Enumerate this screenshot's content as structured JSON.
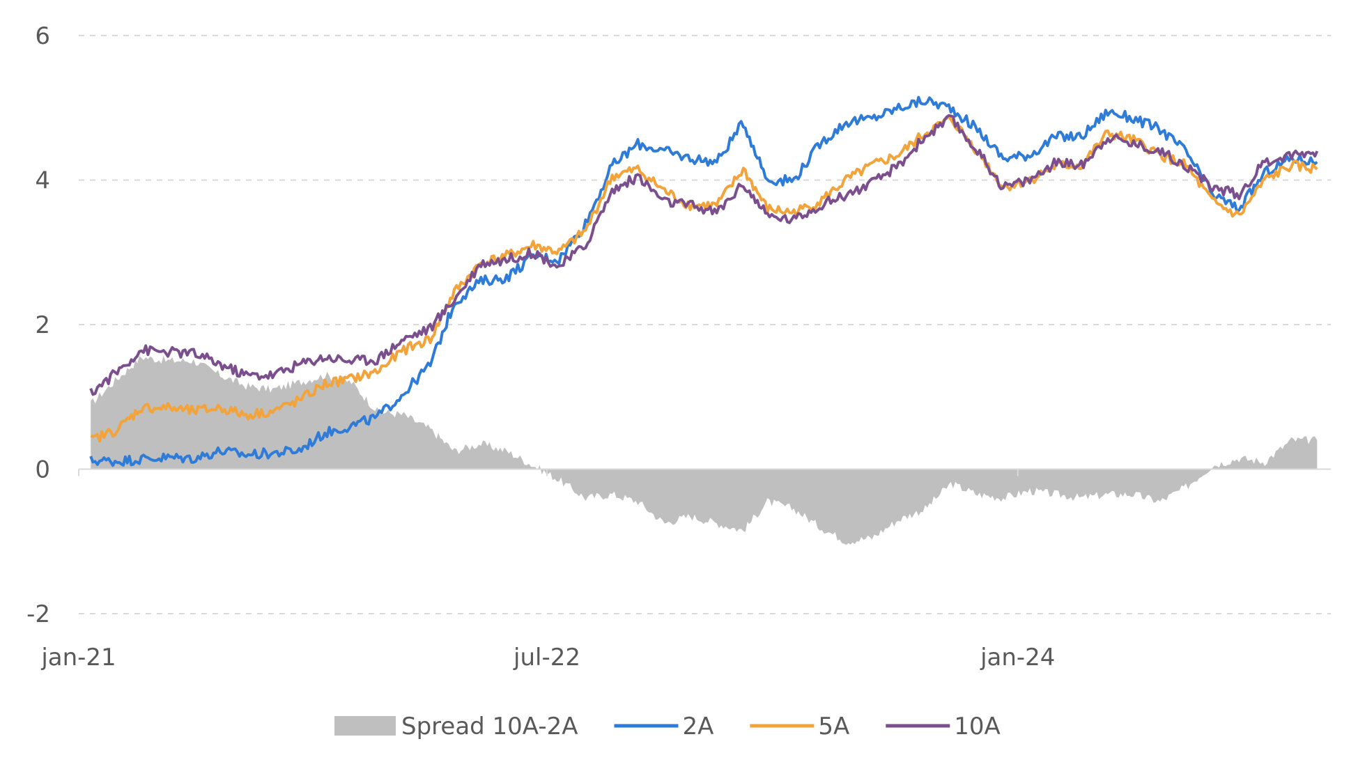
{
  "chart_data": {
    "type": "line",
    "title": "",
    "xlabel": "",
    "ylabel": "",
    "ylim": [
      -2,
      6
    ],
    "yticks": [
      -2,
      0,
      2,
      4,
      6
    ],
    "yticklabels": [
      "-2",
      "0",
      "2",
      "4",
      "6"
    ],
    "xlim": [
      "2021-01-01",
      "2024-12-31"
    ],
    "xticks": [
      "2021-01-01",
      "2022-07-01",
      "2024-01-01"
    ],
    "xticklabels": [
      "jan-21",
      "jul-22",
      "jan-24"
    ],
    "grid": true,
    "legend": "bottom",
    "x": [
      "2021-01",
      "2021-02",
      "2021-03",
      "2021-04",
      "2021-05",
      "2021-06",
      "2021-07",
      "2021-08",
      "2021-09",
      "2021-10",
      "2021-11",
      "2021-12",
      "2022-01",
      "2022-02",
      "2022-03",
      "2022-04",
      "2022-05",
      "2022-06",
      "2022-07",
      "2022-08",
      "2022-09",
      "2022-10",
      "2022-11",
      "2022-12",
      "2023-01",
      "2023-02",
      "2023-03",
      "2023-04",
      "2023-05",
      "2023-06",
      "2023-07",
      "2023-08",
      "2023-09",
      "2023-10",
      "2023-11",
      "2023-12",
      "2024-01",
      "2024-02",
      "2024-03",
      "2024-04",
      "2024-05",
      "2024-06",
      "2024-07",
      "2024-08",
      "2024-09",
      "2024-10",
      "2024-11",
      "2024-12"
    ],
    "series": [
      {
        "name": "Spread 10A-2A",
        "kind": "area",
        "color": "#bfbfbf",
        "values": [
          0.9,
          1.25,
          1.55,
          1.5,
          1.5,
          1.3,
          1.15,
          1.1,
          1.2,
          1.3,
          1.2,
          0.8,
          0.75,
          0.55,
          0.25,
          0.35,
          0.25,
          0.05,
          -0.15,
          -0.4,
          -0.35,
          -0.45,
          -0.75,
          -0.65,
          -0.75,
          -0.85,
          -0.45,
          -0.55,
          -0.8,
          -1.0,
          -0.95,
          -0.7,
          -0.55,
          -0.2,
          -0.35,
          -0.4,
          -0.3,
          -0.35,
          -0.4,
          -0.35,
          -0.35,
          -0.45,
          -0.25,
          0.05,
          0.15,
          0.1,
          0.4,
          0.4
        ]
      },
      {
        "name": "2A",
        "kind": "line",
        "color": "#2e7bd8",
        "values": [
          0.12,
          0.11,
          0.14,
          0.16,
          0.15,
          0.25,
          0.2,
          0.22,
          0.26,
          0.5,
          0.6,
          0.72,
          1.05,
          1.45,
          2.3,
          2.6,
          2.65,
          2.95,
          2.9,
          3.4,
          4.2,
          4.5,
          4.4,
          4.3,
          4.25,
          4.8,
          4.0,
          4.0,
          4.5,
          4.8,
          4.85,
          5.0,
          5.1,
          5.0,
          4.7,
          4.3,
          4.35,
          4.6,
          4.6,
          4.95,
          4.85,
          4.7,
          4.4,
          3.8,
          3.6,
          4.1,
          4.3,
          4.25
        ]
      },
      {
        "name": "5A",
        "kind": "line",
        "color": "#f2a33a",
        "values": [
          0.4,
          0.55,
          0.85,
          0.85,
          0.8,
          0.85,
          0.75,
          0.8,
          0.95,
          1.18,
          1.25,
          1.35,
          1.65,
          1.8,
          2.45,
          2.85,
          2.95,
          3.1,
          3.0,
          3.3,
          4.05,
          4.15,
          3.85,
          3.65,
          3.65,
          4.15,
          3.6,
          3.55,
          3.7,
          4.0,
          4.2,
          4.35,
          4.65,
          4.85,
          4.4,
          3.9,
          4.0,
          4.2,
          4.2,
          4.65,
          4.55,
          4.35,
          4.2,
          3.7,
          3.5,
          4.0,
          4.2,
          4.15
        ]
      },
      {
        "name": "10A",
        "kind": "line",
        "color": "#7b4f8e",
        "values": [
          1.05,
          1.35,
          1.65,
          1.62,
          1.6,
          1.45,
          1.3,
          1.3,
          1.45,
          1.55,
          1.5,
          1.52,
          1.8,
          1.95,
          2.35,
          2.85,
          2.9,
          3.0,
          2.8,
          3.1,
          3.85,
          4.05,
          3.7,
          3.65,
          3.55,
          3.95,
          3.5,
          3.45,
          3.65,
          3.8,
          3.95,
          4.2,
          4.6,
          4.85,
          4.4,
          3.9,
          4.0,
          4.25,
          4.2,
          4.6,
          4.5,
          4.4,
          4.2,
          3.9,
          3.8,
          4.25,
          4.35,
          4.4
        ]
      }
    ]
  }
}
